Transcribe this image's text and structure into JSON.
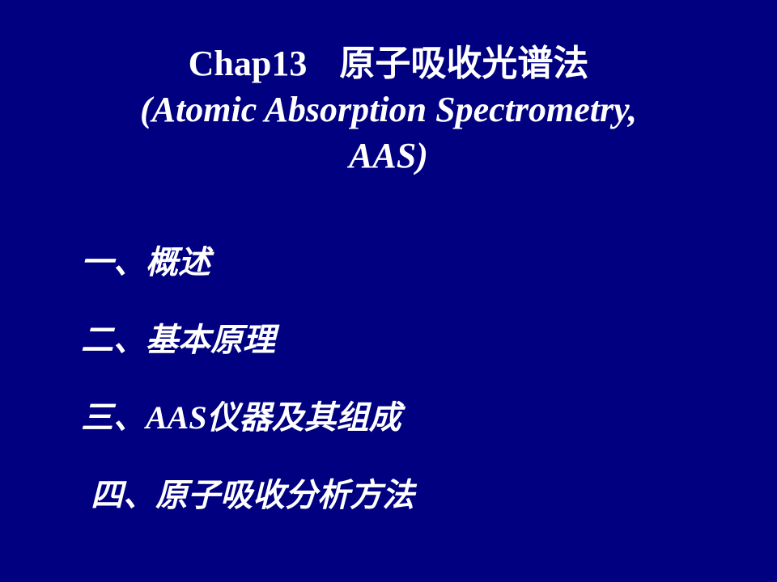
{
  "colors": {
    "background": "#000080",
    "text": "#ffffff"
  },
  "title": {
    "chapter": "Chap13",
    "zh": "原子吸收光谱法",
    "en_line1": "(Atomic Absorption Spectrometry,",
    "en_line2": "AAS)",
    "fontsize": 44
  },
  "outline": {
    "fontsize": 40,
    "items": [
      "一、概述",
      "二、基本原理",
      "三、AAS仪器及其组成",
      "四、原子吸收分析方法"
    ]
  }
}
